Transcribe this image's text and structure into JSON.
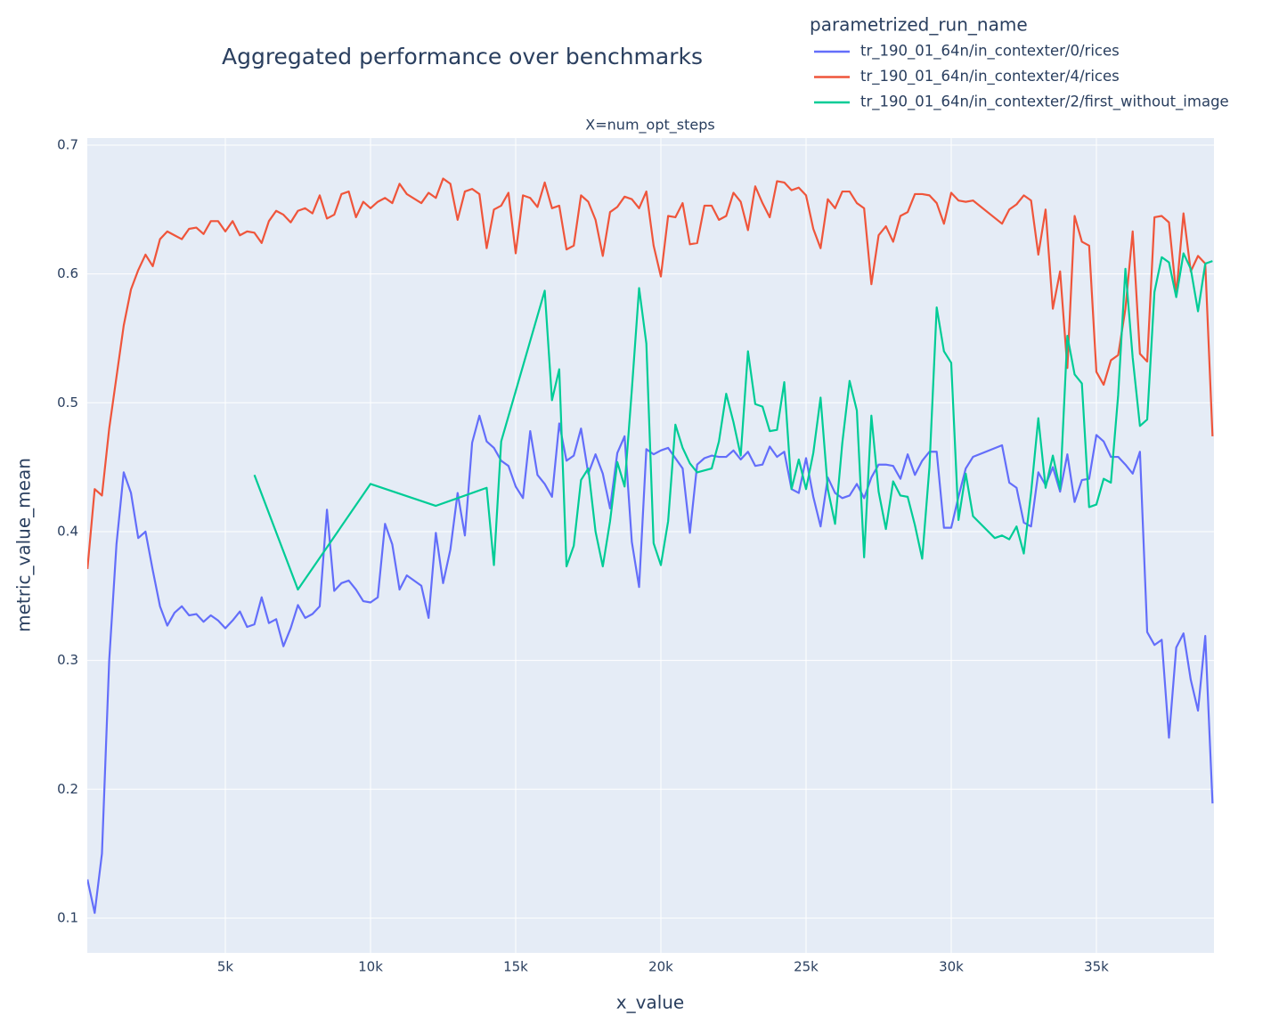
{
  "chart_data": {
    "type": "line",
    "title": "Aggregated performance over benchmarks",
    "subtitle": "X=num_opt_steps",
    "x_label": "x_value",
    "y_label": "metric_value_mean",
    "legend_title": "parametrized_run_name",
    "legend": "top-right",
    "grid": true,
    "xlim": [
      245,
      39050
    ],
    "ylim": [
      0.073,
      0.7055
    ],
    "xticks": [
      {
        "value": 5000,
        "label": "5k"
      },
      {
        "value": 10000,
        "label": "10k"
      },
      {
        "value": 15000,
        "label": "15k"
      },
      {
        "value": 20000,
        "label": "20k"
      },
      {
        "value": 25000,
        "label": "25k"
      },
      {
        "value": 30000,
        "label": "30k"
      },
      {
        "value": 35000,
        "label": "35k"
      }
    ],
    "yticks": [
      0.1,
      0.2,
      0.3,
      0.4,
      0.5,
      0.6,
      0.7
    ],
    "series": [
      {
        "name": "tr_190_01_64n/in_contexter/0/rices",
        "color": "#636efa",
        "x": [
          250,
          500,
          750,
          1000,
          1250,
          1500,
          1750,
          2000,
          2250,
          2500,
          2750,
          3000,
          3250,
          3500,
          3750,
          4000,
          4250,
          4500,
          4750,
          5000,
          5250,
          5500,
          5750,
          6000,
          6250,
          6500,
          6750,
          7000,
          7250,
          7500,
          7750,
          8000,
          8250,
          8500,
          8750,
          9000,
          9250,
          9500,
          9750,
          10000,
          10250,
          10500,
          10750,
          11000,
          11250,
          11750,
          12000,
          12250,
          12500,
          12750,
          13000,
          13250,
          13500,
          13750,
          14000,
          14250,
          14500,
          14750,
          15000,
          15250,
          15500,
          15750,
          16000,
          16250,
          16500,
          16750,
          17000,
          17250,
          17500,
          17750,
          18000,
          18250,
          18500,
          18750,
          19000,
          19250,
          19500,
          19750,
          20000,
          20250,
          20500,
          20750,
          21000,
          21250,
          21500,
          21750,
          22000,
          22250,
          22500,
          22750,
          23000,
          23250,
          23500,
          23750,
          24000,
          24250,
          24500,
          24750,
          25000,
          25250,
          25500,
          25750,
          26000,
          26250,
          26500,
          26750,
          27000,
          27250,
          27500,
          27750,
          28000,
          28250,
          28500,
          28750,
          29000,
          29250,
          29500,
          29750,
          30000,
          30250,
          30500,
          30750,
          31750,
          32000,
          32250,
          32500,
          32750,
          33000,
          33250,
          33500,
          33750,
          34000,
          34250,
          34500,
          34750,
          35000,
          35250,
          35500,
          35750,
          36000,
          36250,
          36500,
          36750,
          37000,
          37250,
          37500,
          37750,
          38000,
          38250,
          38500,
          38750,
          39000
        ],
        "values": [
          0.13,
          0.104,
          0.15,
          0.3,
          0.39,
          0.446,
          0.43,
          0.395,
          0.4,
          0.37,
          0.342,
          0.327,
          0.337,
          0.342,
          0.335,
          0.336,
          0.33,
          0.335,
          0.331,
          0.325,
          0.331,
          0.338,
          0.326,
          0.328,
          0.349,
          0.329,
          0.332,
          0.311,
          0.325,
          0.343,
          0.333,
          0.336,
          0.342,
          0.417,
          0.354,
          0.36,
          0.362,
          0.355,
          0.346,
          0.345,
          0.349,
          0.406,
          0.39,
          0.355,
          0.366,
          0.358,
          0.333,
          0.399,
          0.36,
          0.386,
          0.43,
          0.397,
          0.469,
          0.49,
          0.47,
          0.465,
          0.455,
          0.451,
          0.435,
          0.426,
          0.478,
          0.444,
          0.437,
          0.427,
          0.484,
          0.455,
          0.459,
          0.48,
          0.445,
          0.46,
          0.445,
          0.418,
          0.461,
          0.474,
          0.392,
          0.357,
          0.464,
          0.46,
          0.463,
          0.465,
          0.457,
          0.449,
          0.399,
          0.452,
          0.457,
          0.459,
          0.458,
          0.458,
          0.463,
          0.456,
          0.462,
          0.451,
          0.452,
          0.466,
          0.458,
          0.462,
          0.433,
          0.43,
          0.457,
          0.427,
          0.404,
          0.442,
          0.43,
          0.426,
          0.428,
          0.437,
          0.426,
          0.442,
          0.452,
          0.452,
          0.451,
          0.441,
          0.46,
          0.444,
          0.455,
          0.462,
          0.462,
          0.403,
          0.403,
          0.427,
          0.449,
          0.458,
          0.467,
          0.438,
          0.434,
          0.407,
          0.404,
          0.446,
          0.436,
          0.45,
          0.431,
          0.46,
          0.423,
          0.44,
          0.441,
          0.475,
          0.47,
          0.458,
          0.458,
          0.452,
          0.445,
          0.462,
          0.322,
          0.312,
          0.316,
          0.24,
          0.31,
          0.321,
          0.285,
          0.261,
          0.319,
          0.189
        ]
      },
      {
        "name": "tr_190_01_64n/in_contexter/4/rices",
        "color": "#ef553b",
        "x": [
          250,
          500,
          750,
          1000,
          1250,
          1500,
          1750,
          2000,
          2250,
          2500,
          2750,
          3000,
          3250,
          3500,
          3750,
          4000,
          4250,
          4500,
          4750,
          5000,
          5250,
          5500,
          5750,
          6000,
          6250,
          6500,
          6750,
          7000,
          7250,
          7500,
          7750,
          8000,
          8250,
          8500,
          8750,
          9000,
          9250,
          9500,
          9750,
          10000,
          10250,
          10500,
          10750,
          11000,
          11250,
          11750,
          12000,
          12250,
          12500,
          12750,
          13000,
          13250,
          13500,
          13750,
          14000,
          14250,
          14500,
          14750,
          15000,
          15250,
          15500,
          15750,
          16000,
          16250,
          16500,
          16750,
          17000,
          17250,
          17500,
          17750,
          18000,
          18250,
          18500,
          18750,
          19000,
          19250,
          19500,
          19750,
          20000,
          20250,
          20500,
          20750,
          21000,
          21250,
          21500,
          21750,
          22000,
          22250,
          22500,
          22750,
          23000,
          23250,
          23500,
          23750,
          24000,
          24250,
          24500,
          24750,
          25000,
          25250,
          25500,
          25750,
          26000,
          26250,
          26500,
          26750,
          27000,
          27250,
          27500,
          27750,
          28000,
          28250,
          28500,
          28750,
          29000,
          29250,
          29500,
          29750,
          30000,
          30250,
          30500,
          30750,
          31750,
          32000,
          32250,
          32500,
          32750,
          33000,
          33250,
          33500,
          33750,
          34000,
          34250,
          34500,
          34750,
          35000,
          35250,
          35500,
          35750,
          36000,
          36250,
          36500,
          36750,
          37000,
          37250,
          37500,
          37750,
          38000,
          38250,
          38500,
          38750,
          39000
        ],
        "values": [
          0.371,
          0.433,
          0.428,
          0.48,
          0.52,
          0.56,
          0.588,
          0.603,
          0.615,
          0.606,
          0.627,
          0.633,
          0.63,
          0.627,
          0.635,
          0.636,
          0.631,
          0.641,
          0.641,
          0.633,
          0.641,
          0.63,
          0.633,
          0.632,
          0.624,
          0.641,
          0.649,
          0.646,
          0.64,
          0.649,
          0.651,
          0.647,
          0.661,
          0.643,
          0.646,
          0.662,
          0.664,
          0.644,
          0.656,
          0.651,
          0.656,
          0.659,
          0.655,
          0.67,
          0.662,
          0.655,
          0.663,
          0.659,
          0.674,
          0.67,
          0.642,
          0.664,
          0.666,
          0.662,
          0.62,
          0.65,
          0.653,
          0.663,
          0.616,
          0.661,
          0.659,
          0.652,
          0.671,
          0.651,
          0.653,
          0.619,
          0.622,
          0.661,
          0.656,
          0.642,
          0.614,
          0.648,
          0.652,
          0.66,
          0.658,
          0.651,
          0.664,
          0.622,
          0.598,
          0.645,
          0.644,
          0.655,
          0.623,
          0.624,
          0.653,
          0.653,
          0.642,
          0.645,
          0.663,
          0.656,
          0.634,
          0.668,
          0.655,
          0.644,
          0.672,
          0.671,
          0.665,
          0.667,
          0.661,
          0.635,
          0.62,
          0.658,
          0.651,
          0.664,
          0.664,
          0.655,
          0.651,
          0.592,
          0.63,
          0.637,
          0.625,
          0.645,
          0.648,
          0.662,
          0.662,
          0.661,
          0.655,
          0.639,
          0.663,
          0.657,
          0.656,
          0.657,
          0.639,
          0.65,
          0.654,
          0.661,
          0.657,
          0.615,
          0.65,
          0.573,
          0.602,
          0.527,
          0.645,
          0.625,
          0.622,
          0.524,
          0.514,
          0.533,
          0.537,
          0.573,
          0.633,
          0.538,
          0.532,
          0.644,
          0.645,
          0.64,
          0.584,
          0.647,
          0.602,
          0.614,
          0.608,
          0.474
        ]
      },
      {
        "name": "tr_190_01_64n/in_contexter/2/first_without_image",
        "color": "#00cc96",
        "x": [
          6000,
          7500,
          10000,
          12250,
          14000,
          14250,
          14500,
          16000,
          16250,
          16500,
          16750,
          17000,
          17250,
          17500,
          17750,
          18000,
          18250,
          18500,
          18750,
          19000,
          19250,
          19500,
          19750,
          20000,
          20250,
          20500,
          20750,
          21000,
          21250,
          21750,
          22000,
          22250,
          22500,
          22750,
          23000,
          23250,
          23500,
          23750,
          24000,
          24250,
          24500,
          24750,
          25000,
          25250,
          25500,
          25750,
          26000,
          26250,
          26500,
          26750,
          27000,
          27250,
          27500,
          27750,
          28000,
          28250,
          28500,
          28750,
          29000,
          29250,
          29500,
          29750,
          30000,
          30250,
          30500,
          30750,
          31500,
          31750,
          32000,
          32250,
          32500,
          32750,
          33000,
          33250,
          33500,
          33750,
          34000,
          34250,
          34500,
          34750,
          35000,
          35250,
          35500,
          35750,
          36000,
          36250,
          36500,
          36750,
          37000,
          37250,
          37500,
          37750,
          38000,
          38250,
          38500,
          38750,
          39000
        ],
        "values": [
          0.444,
          0.355,
          0.437,
          0.42,
          0.434,
          0.374,
          0.47,
          0.587,
          0.502,
          0.526,
          0.373,
          0.389,
          0.44,
          0.449,
          0.4,
          0.373,
          0.408,
          0.454,
          0.435,
          0.51,
          0.589,
          0.546,
          0.391,
          0.374,
          0.408,
          0.483,
          0.465,
          0.453,
          0.446,
          0.449,
          0.47,
          0.507,
          0.485,
          0.459,
          0.54,
          0.499,
          0.497,
          0.478,
          0.479,
          0.516,
          0.433,
          0.456,
          0.433,
          0.461,
          0.504,
          0.433,
          0.406,
          0.469,
          0.517,
          0.494,
          0.38,
          0.49,
          0.431,
          0.402,
          0.439,
          0.428,
          0.427,
          0.405,
          0.379,
          0.45,
          0.574,
          0.54,
          0.531,
          0.409,
          0.445,
          0.412,
          0.395,
          0.397,
          0.394,
          0.404,
          0.383,
          0.43,
          0.488,
          0.434,
          0.459,
          0.433,
          0.552,
          0.522,
          0.515,
          0.419,
          0.421,
          0.441,
          0.438,
          0.506,
          0.604,
          0.535,
          0.482,
          0.487,
          0.586,
          0.613,
          0.609,
          0.582,
          0.616,
          0.604,
          0.571,
          0.608,
          0.61
        ]
      }
    ]
  }
}
